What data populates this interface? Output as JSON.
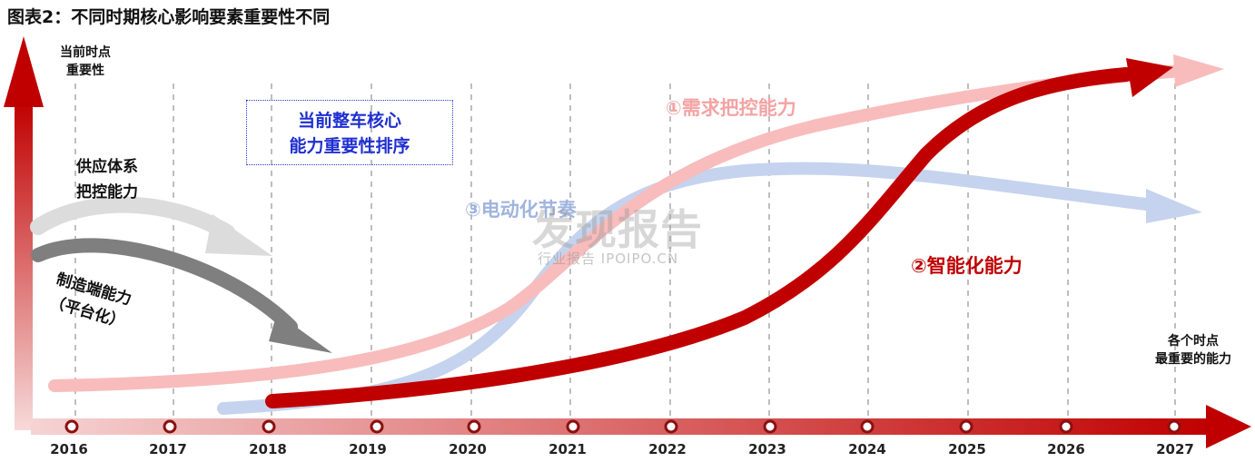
{
  "title": "图表2：不同时期核心影响要素重要性不同",
  "y_axis_label": "当前时点\n重要性",
  "x_axis_label": "各个时点\n最重要的能力",
  "supply_label": "供应体系\n把控能力",
  "manufacturing_label": "制造端能力\n（平台化）",
  "ranking_box": "当前整车核心\n能力重要性排序",
  "curves": {
    "demand": "①需求把控能力",
    "intelligence": "②智能化能力",
    "electrification": "③电动化节奏"
  },
  "watermark": {
    "main": "发现报告",
    "sub": "行业报告 IPOIPO.CN"
  },
  "years": [
    "2016",
    "2017",
    "2018",
    "2019",
    "2020",
    "2021",
    "2022",
    "2023",
    "2024",
    "2025",
    "2026",
    "2027"
  ],
  "colors": {
    "dark_red": "#c00000",
    "light_pink": "#f8bcbc",
    "light_blue": "#c5d3ee",
    "gray": "#8a8a8a",
    "light_gray": "#dedede"
  }
}
